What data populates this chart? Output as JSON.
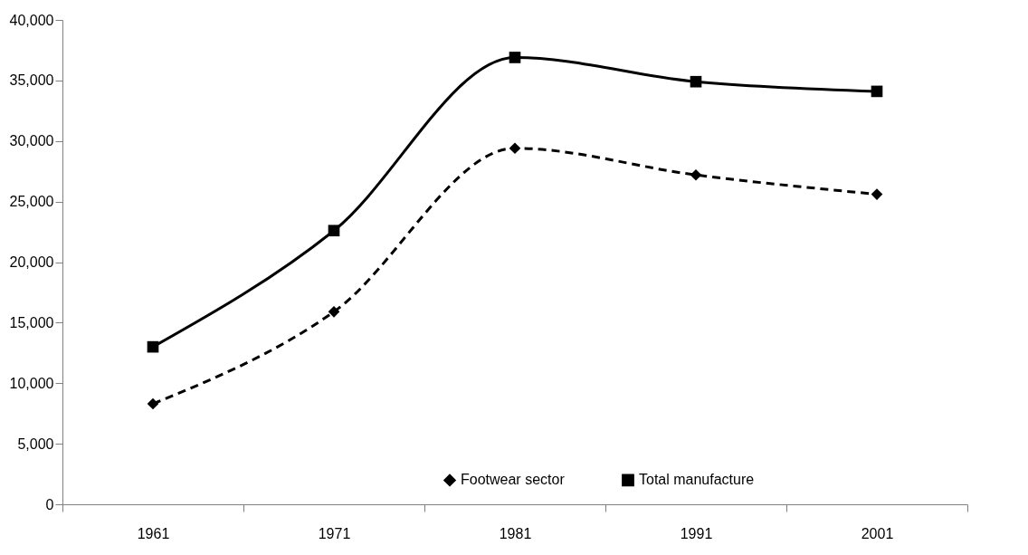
{
  "chart_data": {
    "type": "line",
    "categories": [
      "1961",
      "1971",
      "1981",
      "1991",
      "2001"
    ],
    "series": [
      {
        "name": "Footwear sector",
        "color": "#000000",
        "values": [
          8300,
          15900,
          29400,
          27200,
          25600
        ],
        "marker": "diamond",
        "line_style": "dashed"
      },
      {
        "name": "Total manufacture",
        "color": "#000000",
        "values": [
          13000,
          22600,
          36900,
          34900,
          34100
        ],
        "marker": "square",
        "line_style": "solid"
      }
    ],
    "ylim": [
      0,
      40000
    ],
    "yticks": [
      0,
      {
        "value": 5000,
        "label": "5,000"
      },
      {
        "value": 10000,
        "label": "10,000"
      },
      {
        "value": 15000,
        "label": "15,000"
      },
      {
        "value": 20000,
        "label": "20,000"
      },
      {
        "value": 25000,
        "label": "25,000"
      },
      {
        "value": 30000,
        "label": "30,000"
      },
      {
        "value": 35000,
        "label": "35,000"
      },
      {
        "value": 40000,
        "label": "40,000"
      }
    ],
    "grid": false,
    "legend": "bottom"
  }
}
